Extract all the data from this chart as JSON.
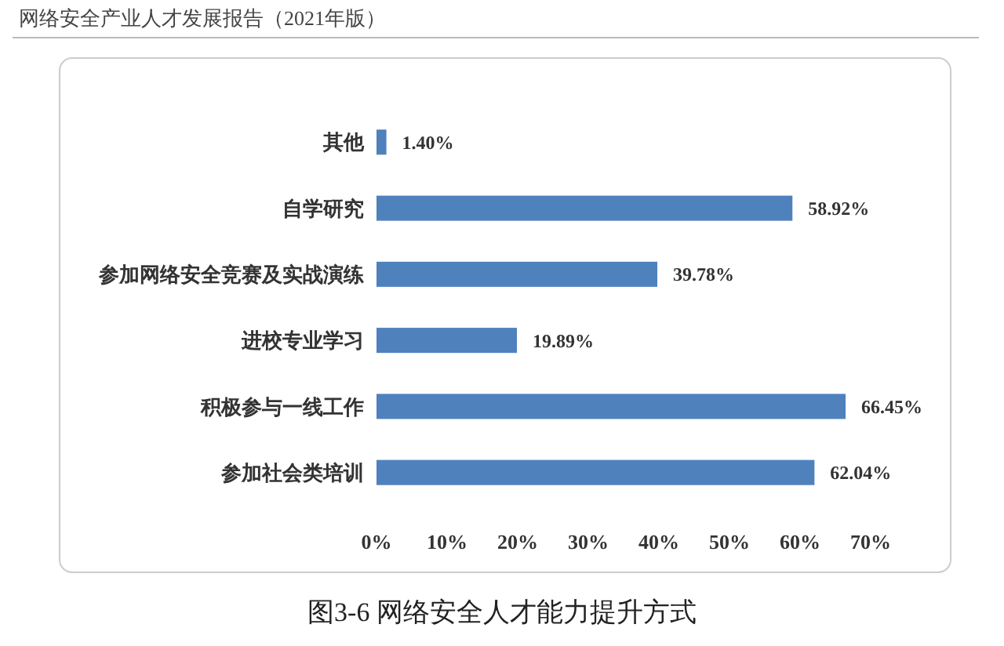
{
  "chart_data": {
    "type": "bar",
    "orientation": "horizontal",
    "title": "图3-6 网络安全人才能力提升方式",
    "annotations": [
      "网络安全产业人才发展报告（2021年版）"
    ],
    "categories": [
      "其他",
      "自学研究",
      "参加网络安全竞赛及实战演练",
      "进校专业学习",
      "积极参与一线工作",
      "参加社会类培训"
    ],
    "values": [
      1.4,
      58.92,
      39.78,
      19.89,
      66.45,
      62.04
    ],
    "value_labels": [
      "1.40%",
      "58.92%",
      "39.78%",
      "19.89%",
      "66.45%",
      "62.04%"
    ],
    "color": "#4f81bd",
    "xlim": [
      0,
      70
    ],
    "xticks": [
      {
        "value": 0,
        "label": "0%"
      },
      {
        "value": 10,
        "label": "10%"
      },
      {
        "value": 20,
        "label": "20%"
      },
      {
        "value": 30,
        "label": "30%"
      },
      {
        "value": 40,
        "label": "40%"
      },
      {
        "value": 50,
        "label": "50%"
      },
      {
        "value": 60,
        "label": "60%"
      },
      {
        "value": 70,
        "label": "70%"
      }
    ],
    "grid": false
  }
}
